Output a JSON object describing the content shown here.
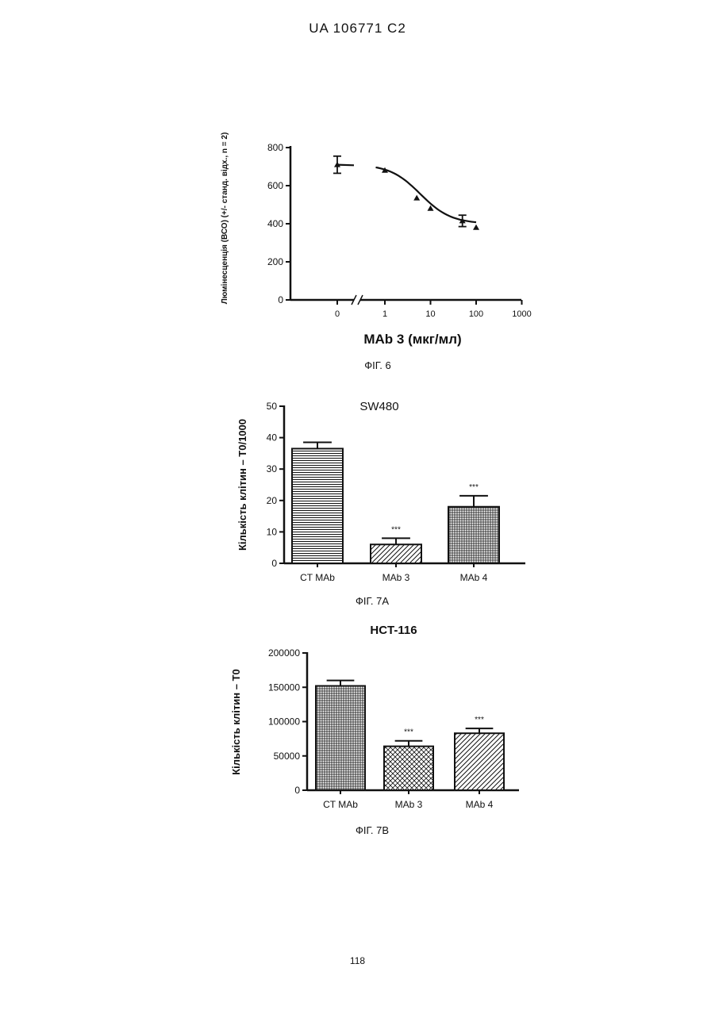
{
  "header": {
    "text": "UA   106771   C2"
  },
  "page_number": "118",
  "fig6": {
    "caption": "ФІГ. 6"
  },
  "fig7a": {
    "caption": "ФІГ. 7А"
  },
  "fig7b": {
    "caption": "ФІГ. 7В"
  },
  "chart_data": [
    {
      "type": "line",
      "title": "",
      "xlabel": "MAb 3 (мкг/мл)",
      "ylabel": "Люмінесценція (ВСО) (+/- станд. відх., n = 2)",
      "xscale": "log with broken axis at 0",
      "x_ticks": [
        "0",
        "1",
        "10",
        "100",
        "1000"
      ],
      "y_ticks": [
        0,
        200,
        400,
        600,
        800
      ],
      "ylim": [
        0,
        800
      ],
      "points": [
        {
          "x": 0,
          "y": 710,
          "err": 45
        },
        {
          "x": 1,
          "y": 680,
          "err": 0
        },
        {
          "x": 5,
          "y": 535,
          "err": 0
        },
        {
          "x": 10,
          "y": 480,
          "err": 0
        },
        {
          "x": 50,
          "y": 415,
          "err": 30
        },
        {
          "x": 100,
          "y": 380,
          "err": 0
        }
      ]
    },
    {
      "type": "bar",
      "title": "SW480",
      "xlabel": "",
      "ylabel": "Кількість клітин – Т0/1000",
      "categories": [
        "CT MAb",
        "MAb 3",
        "MAb 4"
      ],
      "values": [
        36.5,
        6,
        18
      ],
      "errors": [
        2,
        2,
        3.5
      ],
      "annotations": [
        "",
        "***",
        "***"
      ],
      "patterns": [
        "hlines",
        "diag",
        "grid"
      ],
      "ylim": [
        0,
        50
      ],
      "y_ticks": [
        "0",
        "10",
        "20",
        "30",
        "40",
        "50"
      ]
    },
    {
      "type": "bar",
      "title": "HCT-116",
      "xlabel": "",
      "ylabel": "Кількість клітин – Т0",
      "categories": [
        "CT MAb",
        "MAb 3",
        "MAb 4"
      ],
      "values": [
        152000,
        64000,
        83000
      ],
      "errors": [
        8000,
        8000,
        7000
      ],
      "annotations": [
        "",
        "***",
        "***"
      ],
      "patterns": [
        "grid",
        "crosshatch",
        "diag"
      ],
      "ylim": [
        0,
        200000
      ],
      "y_ticks": [
        "0",
        "50000",
        "100000",
        "150000",
        "200000"
      ]
    }
  ]
}
